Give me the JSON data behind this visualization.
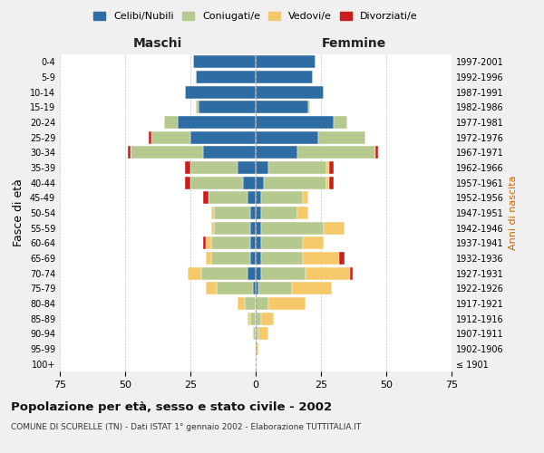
{
  "age_groups": [
    "100+",
    "95-99",
    "90-94",
    "85-89",
    "80-84",
    "75-79",
    "70-74",
    "65-69",
    "60-64",
    "55-59",
    "50-54",
    "45-49",
    "40-44",
    "35-39",
    "30-34",
    "25-29",
    "20-24",
    "15-19",
    "10-14",
    "5-9",
    "0-4"
  ],
  "birth_years": [
    "≤ 1901",
    "1902-1906",
    "1907-1911",
    "1912-1916",
    "1917-1921",
    "1922-1926",
    "1927-1931",
    "1932-1936",
    "1937-1941",
    "1942-1946",
    "1947-1951",
    "1952-1956",
    "1957-1961",
    "1962-1966",
    "1967-1971",
    "1972-1976",
    "1977-1981",
    "1982-1986",
    "1987-1991",
    "1992-1996",
    "1997-2001"
  ],
  "colors": {
    "celibi": "#2e6da4",
    "coniugati": "#b5c98e",
    "vedovi": "#f5c96a",
    "divorziati": "#cc1c1c"
  },
  "males": {
    "celibi": [
      0,
      0,
      0,
      0,
      0,
      1,
      3,
      2,
      2,
      2,
      2,
      3,
      5,
      7,
      20,
      25,
      30,
      22,
      27,
      23,
      24
    ],
    "coniugati": [
      0,
      0,
      1,
      2,
      4,
      14,
      18,
      15,
      15,
      14,
      14,
      15,
      20,
      18,
      28,
      15,
      5,
      1,
      0,
      0,
      0
    ],
    "vedovi": [
      0,
      0,
      0,
      1,
      3,
      4,
      5,
      2,
      2,
      1,
      1,
      0,
      0,
      0,
      0,
      0,
      0,
      0,
      0,
      0,
      0
    ],
    "divorziati": [
      0,
      0,
      0,
      0,
      0,
      0,
      0,
      0,
      1,
      0,
      0,
      2,
      2,
      2,
      1,
      1,
      0,
      0,
      0,
      0,
      0
    ]
  },
  "females": {
    "nubili": [
      0,
      0,
      0,
      0,
      0,
      1,
      2,
      2,
      2,
      2,
      2,
      2,
      3,
      5,
      16,
      24,
      30,
      20,
      26,
      22,
      23
    ],
    "coniugate": [
      0,
      0,
      1,
      2,
      5,
      13,
      17,
      16,
      16,
      24,
      14,
      16,
      24,
      22,
      30,
      18,
      5,
      1,
      0,
      0,
      0
    ],
    "vedove": [
      0,
      1,
      4,
      5,
      14,
      15,
      17,
      14,
      8,
      8,
      4,
      2,
      1,
      1,
      0,
      0,
      0,
      0,
      0,
      0,
      0
    ],
    "divorziate": [
      0,
      0,
      0,
      0,
      0,
      0,
      1,
      2,
      0,
      0,
      0,
      0,
      2,
      2,
      1,
      0,
      0,
      0,
      0,
      0,
      0
    ]
  },
  "xlim": 75,
  "background_color": "#f0f0f0",
  "plot_background": "#ffffff",
  "title": "Popolazione per età, sesso e stato civile - 2002",
  "subtitle": "COMUNE DI SCURELLE (TN) - Dati ISTAT 1° gennaio 2002 - Elaborazione TUTTITALIA.IT",
  "ylabel": "Fasce di età",
  "ylabel_right": "Anni di nascita",
  "legend_labels": [
    "Celibi/Nubili",
    "Coniugati/e",
    "Vedovi/e",
    "Divorziati/e"
  ],
  "maschi_label": "Maschi",
  "femmine_label": "Femmine"
}
